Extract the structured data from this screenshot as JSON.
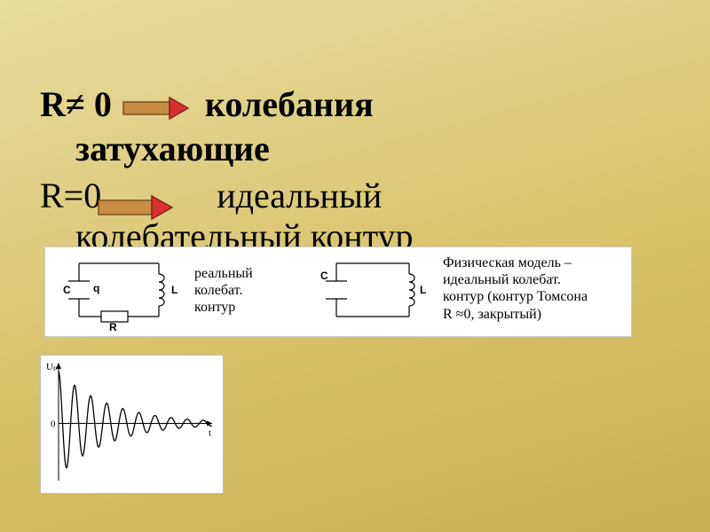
{
  "text": {
    "line1_a": "R≠ 0",
    "line1_b": "колебания",
    "line1_c": "затухающие",
    "line2_a": "R=0",
    "line2_b": "идеальный",
    "line2_c": "колебательный контур"
  },
  "arrows": {
    "block": {
      "width": 75,
      "height": 26,
      "body_fill": "#c88c44",
      "body_stroke": "#7a5020",
      "head_fill": "#d83030",
      "head_stroke": "#8a2020"
    }
  },
  "circuits": {
    "real": {
      "label_C": "C",
      "label_q": "q",
      "label_R": "R",
      "label_L": "L",
      "text": "реальный\nколебат.\nконтур"
    },
    "ideal": {
      "label_C": "C",
      "label_L": "L",
      "text": "Физическая модель –\nидеальный колебат.\nконтур (контур Томсона\nR ≈0, закрытый)"
    },
    "style": {
      "stroke": "#000000",
      "stroke_width": 1.2,
      "label_font_size": 12,
      "label_font_weight": "bold",
      "text_font_size": 16
    }
  },
  "graph": {
    "type": "damped-oscillation",
    "xlabel": "t",
    "ylabel": "Uₚ",
    "background": "#ffffff",
    "axis_color": "#000000",
    "axis_width": 1,
    "curve_color": "#000000",
    "curve_width": 1.3,
    "x_range": [
      0,
      10
    ],
    "y_range": [
      -1.1,
      1.1
    ],
    "initial_amplitude": 1.0,
    "decay_rate": 0.3,
    "angular_freq": 6.0,
    "phase": 1.5708,
    "samples": 420,
    "label_font_size": 11
  }
}
